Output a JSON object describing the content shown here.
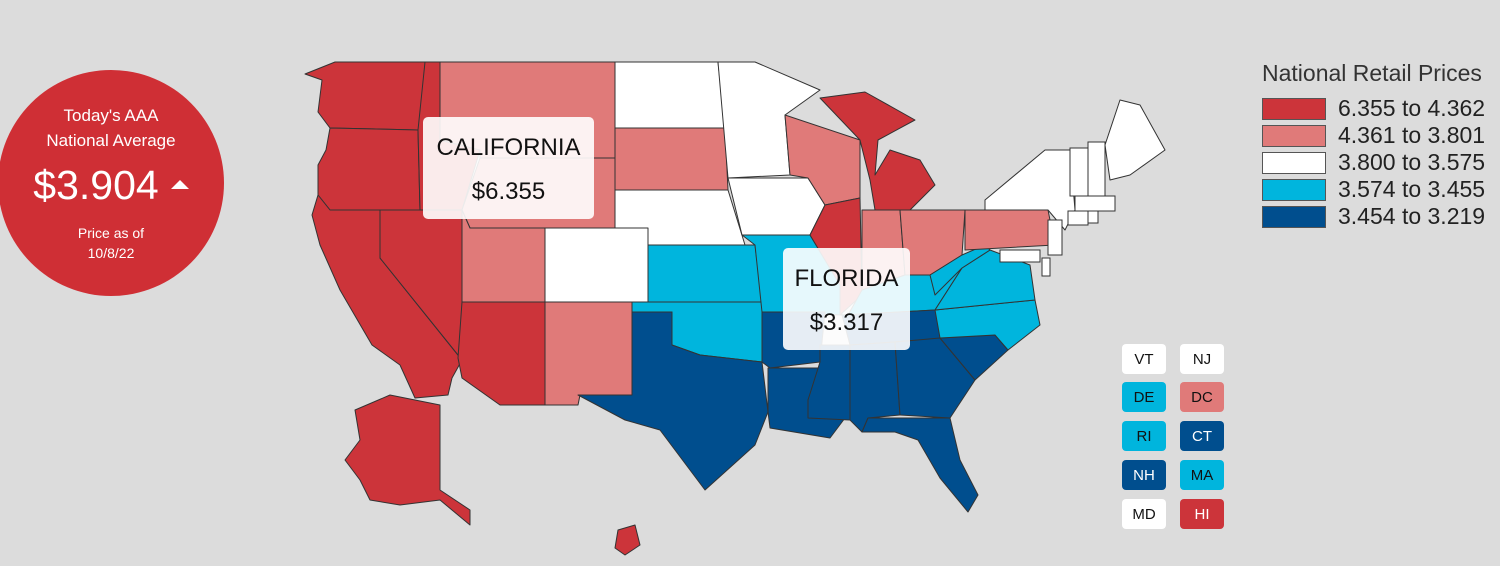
{
  "national_average": {
    "title_line1": "Today's AAA",
    "title_line2": "National Average",
    "price": "$3.904",
    "trend": "up",
    "asof_line1": "Price as of",
    "asof_line2": "10/8/22"
  },
  "colors": {
    "tier1": "#cc343a",
    "tier2": "#e07a79",
    "tier3": "#ffffff",
    "tier4": "#00b5dd",
    "tier5": "#004e8e",
    "circle": "#cf2f35",
    "background": "#dcdcdc"
  },
  "legend": {
    "title": "National Retail Prices",
    "items": [
      {
        "label": "6.355 to 4.362",
        "tier": "tier1"
      },
      {
        "label": "4.361 to 3.801",
        "tier": "tier2"
      },
      {
        "label": "3.800 to 3.575",
        "tier": "tier3"
      },
      {
        "label": "3.574 to 3.455",
        "tier": "tier4"
      },
      {
        "label": "3.454 to 3.219",
        "tier": "tier5"
      }
    ]
  },
  "tooltips": [
    {
      "name": "CALIFORNIA",
      "price": "$6.355"
    },
    {
      "name": "FLORIDA",
      "price": "$3.317"
    }
  ],
  "small_states": [
    {
      "abbr": "VT",
      "tier": "tier3"
    },
    {
      "abbr": "NJ",
      "tier": "tier3"
    },
    {
      "abbr": "DE",
      "tier": "tier4"
    },
    {
      "abbr": "DC",
      "tier": "tier2"
    },
    {
      "abbr": "RI",
      "tier": "tier4"
    },
    {
      "abbr": "CT",
      "tier": "tier5"
    },
    {
      "abbr": "NH",
      "tier": "tier5"
    },
    {
      "abbr": "MA",
      "tier": "tier4"
    },
    {
      "abbr": "MD",
      "tier": "tier3"
    },
    {
      "abbr": "HI",
      "tier": "tier1"
    }
  ],
  "state_tiers": {
    "WA": "tier1",
    "OR": "tier1",
    "CA": "tier1",
    "NV": "tier1",
    "ID": "tier1",
    "AZ": "tier1",
    "AK": "tier1",
    "HI": "tier1",
    "IL": "tier1",
    "MI": "tier1",
    "MT": "tier2",
    "WY": "tier2",
    "UT": "tier2",
    "NM": "tier2",
    "SD": "tier2",
    "WI": "tier2",
    "IN": "tier2",
    "OH": "tier2",
    "PA": "tier2",
    "ND": "tier3",
    "MN": "tier3",
    "NE": "tier3",
    "CO": "tier3",
    "IA": "tier3",
    "NY": "tier3",
    "ME": "tier3",
    "KS": "tier4",
    "MO": "tier4",
    "OK": "tier4",
    "KY": "tier4",
    "WV": "tier4",
    "VA": "tier4",
    "NC": "tier4",
    "TX": "tier5",
    "AR": "tier5",
    "LA": "tier5",
    "MS": "tier5",
    "AL": "tier5",
    "GA": "tier5",
    "SC": "tier5",
    "TN": "tier5",
    "FL": "tier5"
  }
}
